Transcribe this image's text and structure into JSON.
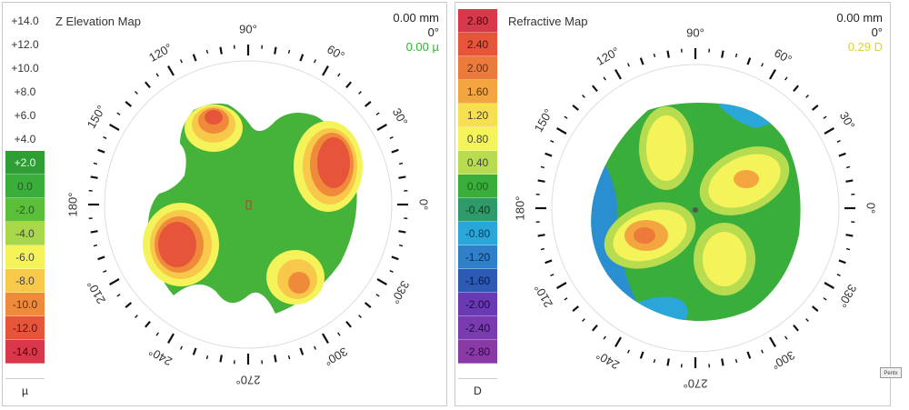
{
  "left": {
    "title": "Z Elevation Map",
    "info": {
      "mm": "0.00 mm",
      "deg": "0°",
      "value": "0.00 µ",
      "value_color": "#2db52d"
    },
    "scale": {
      "unit": "µ",
      "rows": [
        {
          "label": "+14.0",
          "color": "#ffffff",
          "text_color": "#333333"
        },
        {
          "label": "+12.0",
          "color": "#ffffff",
          "text_color": "#333333"
        },
        {
          "label": "+10.0",
          "color": "#ffffff",
          "text_color": "#333333"
        },
        {
          "label": "+8.0",
          "color": "#ffffff",
          "text_color": "#333333"
        },
        {
          "label": "+6.0",
          "color": "#ffffff",
          "text_color": "#333333"
        },
        {
          "label": "+4.0",
          "color": "#ffffff",
          "text_color": "#333333"
        },
        {
          "label": "+2.0",
          "color": "#2f9e35",
          "text_color": "#e8ffe8"
        },
        {
          "label": "0.0",
          "color": "#3aae3a",
          "text_color": "#1f5f1f"
        },
        {
          "label": "-2.0",
          "color": "#5cbf3a",
          "text_color": "#1f5f1f"
        },
        {
          "label": "-4.0",
          "color": "#a8d84a",
          "text_color": "#444444"
        },
        {
          "label": "-6.0",
          "color": "#f4f45a",
          "text_color": "#444444"
        },
        {
          "label": "-8.0",
          "color": "#f7c84a",
          "text_color": "#444444"
        },
        {
          "label": "-10.0",
          "color": "#ef8a3a",
          "text_color": "#553322"
        },
        {
          "label": "-12.0",
          "color": "#e6543a",
          "text_color": "#4a1a10"
        },
        {
          "label": "-14.0",
          "color": "#d9374a",
          "text_color": "#3a0a10"
        }
      ]
    }
  },
  "right": {
    "title": "Refractive Map",
    "info": {
      "mm": "0.00 mm",
      "deg": "0°",
      "value": "0.29 D",
      "value_color": "#d7d72a"
    },
    "scale": {
      "unit": "D",
      "rows": [
        {
          "label": "2.80",
          "color": "#d9374a",
          "text_color": "#3a0a10"
        },
        {
          "label": "2.40",
          "color": "#e6543a",
          "text_color": "#4a1a10"
        },
        {
          "label": "2.00",
          "color": "#ec7a3a",
          "text_color": "#553322"
        },
        {
          "label": "1.60",
          "color": "#f3a640",
          "text_color": "#553322"
        },
        {
          "label": "1.20",
          "color": "#f6e050",
          "text_color": "#444444"
        },
        {
          "label": "0.80",
          "color": "#f4f45a",
          "text_color": "#444444"
        },
        {
          "label": "0.40",
          "color": "#b8dc50",
          "text_color": "#444444"
        },
        {
          "label": "0.00",
          "color": "#3aae3a",
          "text_color": "#1f5f1f"
        },
        {
          "label": "-0.40",
          "color": "#2f9a6a",
          "text_color": "#103a20"
        },
        {
          "label": "-0.80",
          "color": "#2aa6d8",
          "text_color": "#0a3a55"
        },
        {
          "label": "-1.20",
          "color": "#2f80c9",
          "text_color": "#0a2a50"
        },
        {
          "label": "-1.60",
          "color": "#2d5ab5",
          "text_color": "#0a1a40"
        },
        {
          "label": "-2.00",
          "color": "#6a3ab5",
          "text_color": "#1a0a40"
        },
        {
          "label": "-2.40",
          "color": "#7a3ab0",
          "text_color": "#200a40"
        },
        {
          "label": "-2.80",
          "color": "#8a3aa5",
          "text_color": "#250a40"
        }
      ]
    }
  },
  "angles": [
    "0°",
    "30°",
    "60°",
    "90°",
    "120°",
    "150°",
    "180°",
    "210°",
    "240°",
    "270°",
    "300°",
    "330°"
  ],
  "colors": {
    "red": "#d9374a",
    "orange": "#ef8a3a",
    "yellow": "#f4f45a",
    "green": "#3aae3a",
    "light_green": "#a8d84a",
    "blue": "#2aa6d8",
    "dark_blue": "#2d5ab5"
  }
}
